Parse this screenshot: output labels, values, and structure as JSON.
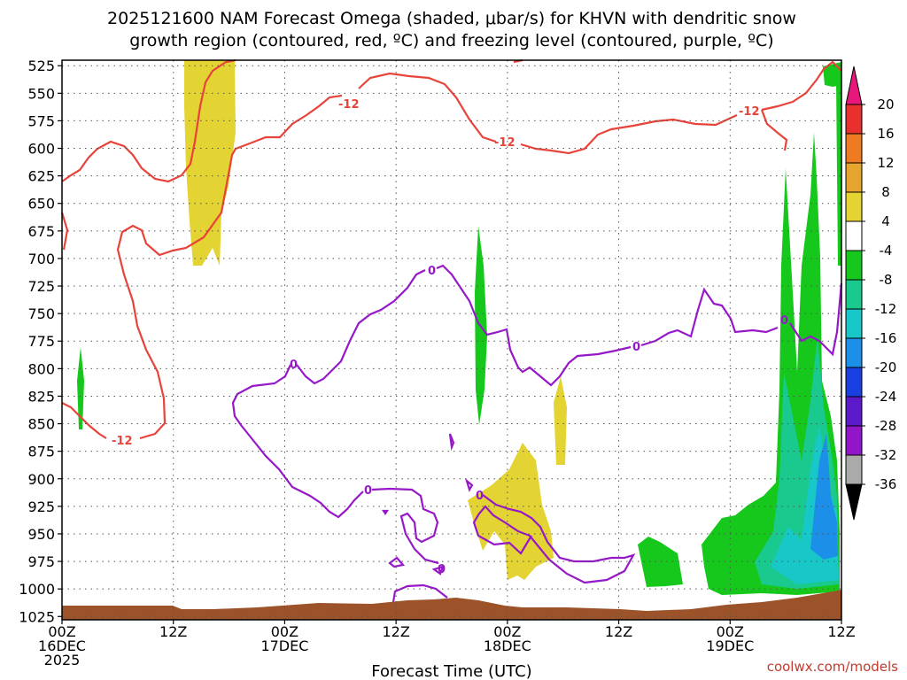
{
  "chart_data": {
    "type": "time-height",
    "title": [
      "2025121600 NAM Forecast Omega (shaded, μbar/s) for KHVN with dendritic snow",
      "growth region (contoured, red, ºC) and freezing level (contoured, purple, ºC)"
    ],
    "xlabel": "Forecast Time (UTC)",
    "credit": "coolwx.com/models",
    "x_range_hours": [
      0,
      84
    ],
    "x_ticks": [
      {
        "h": 0,
        "lines": [
          "00Z",
          "16DEC",
          "2025"
        ]
      },
      {
        "h": 12,
        "lines": [
          "12Z"
        ]
      },
      {
        "h": 24,
        "lines": [
          "00Z",
          "17DEC"
        ]
      },
      {
        "h": 36,
        "lines": [
          "12Z"
        ]
      },
      {
        "h": 48,
        "lines": [
          "00Z",
          "18DEC"
        ]
      },
      {
        "h": 60,
        "lines": [
          "12Z"
        ]
      },
      {
        "h": 72,
        "lines": [
          "00Z",
          "19DEC"
        ]
      },
      {
        "h": 84,
        "lines": [
          "12Z"
        ]
      }
    ],
    "y_ticks": [
      525,
      550,
      575,
      600,
      625,
      650,
      675,
      700,
      725,
      750,
      775,
      800,
      825,
      850,
      875,
      900,
      925,
      950,
      975,
      1000,
      1025
    ],
    "y_range_hpa": [
      520,
      1028
    ],
    "colorbar": {
      "labels": [
        "20",
        "16",
        "12",
        "8",
        "4",
        "-4",
        "-8",
        "-12",
        "-16",
        "-20",
        "-24",
        "-28",
        "-32",
        "-36"
      ],
      "colors": [
        "#e8177b",
        "#e8312e",
        "#ee7a22",
        "#e5a52f",
        "#e3d333",
        "#ffffff",
        "#16c81b",
        "#19c98d",
        "#18c8c8",
        "#1c8fe8",
        "#1a3fe0",
        "#5c19c9",
        "#9315c9",
        "#aaaaaa",
        "#000000"
      ]
    },
    "terrain_color": "#9c5329",
    "contours": {
      "dgz": {
        "color": "#e8433a",
        "value_label": "-12",
        "unit": "ºC"
      },
      "freezing": {
        "color": "#9618c9",
        "value_label": "0",
        "unit": "ºC"
      }
    }
  }
}
